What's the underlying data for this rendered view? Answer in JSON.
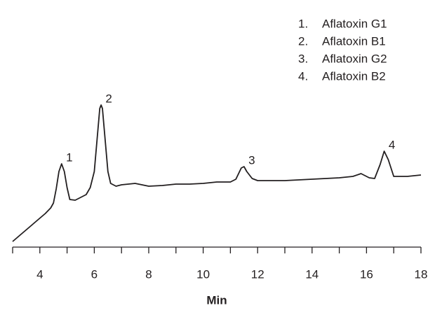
{
  "chart_data": {
    "type": "line",
    "x_label": "Min",
    "xlim": [
      3,
      18
    ],
    "xticks": [
      4,
      6,
      8,
      10,
      12,
      14,
      16,
      18
    ],
    "x_minor_ticks": [
      3,
      5,
      7,
      9,
      11,
      13,
      15,
      17
    ],
    "ylim": [
      0,
      220
    ],
    "color": "#231f20",
    "x": [
      3,
      3.3,
      3.6,
      3.9,
      4.2,
      4.4,
      4.5,
      4.6,
      4.7,
      4.8,
      4.9,
      5.0,
      5.1,
      5.3,
      5.5,
      5.7,
      5.85,
      6.0,
      6.1,
      6.2,
      6.25,
      6.3,
      6.4,
      6.5,
      6.6,
      6.8,
      7,
      7.5,
      8,
      8.5,
      9,
      9.5,
      10,
      10.5,
      11,
      11.2,
      11.4,
      11.5,
      11.6,
      11.8,
      12,
      13,
      14,
      15,
      15.5,
      15.8,
      16.1,
      16.3,
      16.5,
      16.65,
      16.8,
      17,
      17.5,
      18
    ],
    "values": [
      8,
      18,
      28,
      38,
      48,
      56,
      63,
      83,
      108,
      119,
      108,
      85,
      68,
      67,
      71,
      75,
      85,
      108,
      153,
      198,
      203,
      198,
      153,
      108,
      91,
      87,
      89,
      91,
      87,
      88,
      90,
      90,
      91,
      93,
      93,
      97,
      113,
      115,
      108,
      98,
      95,
      95,
      97,
      99,
      101,
      105,
      99,
      98,
      118,
      137,
      125,
      101,
      101,
      103
    ],
    "peaks": [
      {
        "label": "1",
        "x": 4.8,
        "y": 119
      },
      {
        "label": "2",
        "x": 6.25,
        "y": 203
      },
      {
        "label": "3",
        "x": 11.5,
        "y": 115
      },
      {
        "label": "4",
        "x": 16.65,
        "y": 137
      }
    ],
    "legend": [
      {
        "number": "1.",
        "name": "Aflatoxin G1"
      },
      {
        "number": "2.",
        "name": "Aflatoxin B1"
      },
      {
        "number": "3.",
        "name": "Aflatoxin G2"
      },
      {
        "number": "4.",
        "name": "Aflatoxin B2"
      }
    ]
  }
}
